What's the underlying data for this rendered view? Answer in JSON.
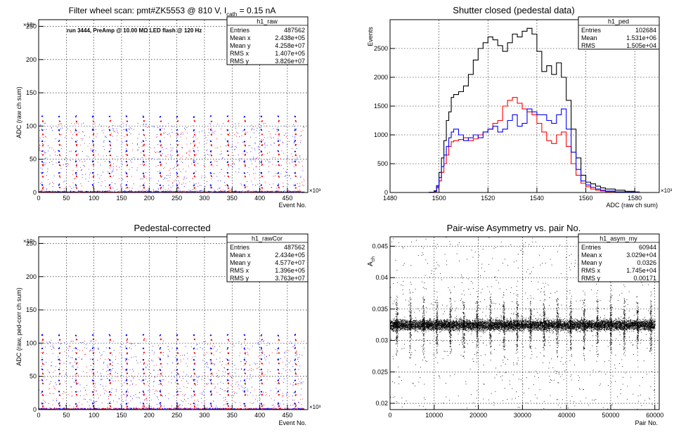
{
  "chart_data": [
    {
      "id": "raw",
      "type": "scatter",
      "title": "Filter wheel scan: pmt#ZK5553 @   810 V, I",
      "title_sub": "cath",
      "title_tail": " = 0.15 nA",
      "annotation": "run 3444, PreAmp @ 10.00 MΩ LED flash @  120 Hz",
      "xlabel": "Event No.",
      "ylabel": "ADC (raw ch sum)",
      "x_exponent": "×10³",
      "y_exponent": "×10⁶",
      "xlim": [
        0,
        487
      ],
      "ylim": [
        0,
        260
      ],
      "xticks": [
        0,
        50,
        100,
        150,
        200,
        250,
        300,
        350,
        400,
        450
      ],
      "yticks": [
        0,
        50,
        100,
        150,
        200,
        250
      ],
      "grid": true,
      "period": 30.5,
      "levels": [
        {
          "y": 115,
          "color": "#0000ff"
        },
        {
          "y": 108,
          "color": "#ff0000"
        },
        {
          "y": 95,
          "color": "#0000ff"
        },
        {
          "y": 88,
          "color": "#ff0000"
        },
        {
          "y": 78,
          "color": "#0000ff"
        },
        {
          "y": 72,
          "color": "#ff0000"
        },
        {
          "y": 63,
          "color": "#0000ff"
        },
        {
          "y": 57,
          "color": "#ff0000"
        },
        {
          "y": 47,
          "color": "#0000ff"
        },
        {
          "y": 42,
          "color": "#ff0000"
        },
        {
          "y": 30,
          "color": "#0000ff"
        },
        {
          "y": 25,
          "color": "#ff0000"
        },
        {
          "y": 12,
          "color": "#0000ff"
        },
        {
          "y": 8,
          "color": "#ff0000"
        }
      ],
      "stats": {
        "name": "h1_raw",
        "rows": [
          [
            "Entries",
            "487562"
          ],
          [
            "Mean x",
            "2.438e+05"
          ],
          [
            "Mean y",
            "4.258e+07"
          ],
          [
            "RMS x",
            "1.407e+05"
          ],
          [
            "RMS y",
            "3.826e+07"
          ]
        ]
      }
    },
    {
      "id": "ped",
      "type": "line",
      "title": "Shutter closed (pedestal data)",
      "xlabel": "ADC (raw ch sum)",
      "ylabel": "Events",
      "x_exponent": "×10³",
      "xlim": [
        1480,
        1590
      ],
      "ylim": [
        0,
        3000
      ],
      "xticks": [
        1480,
        1500,
        1520,
        1540,
        1560,
        1580
      ],
      "yticks": [
        0,
        500,
        1000,
        1500,
        2000,
        2500
      ],
      "grid": true,
      "series": [
        {
          "color": "#000000",
          "x": [
            1496,
            1498,
            1499,
            1500,
            1501,
            1502,
            1503,
            1504,
            1505,
            1506,
            1508,
            1510,
            1512,
            1514,
            1516,
            1518,
            1520,
            1522,
            1524,
            1526,
            1528,
            1530,
            1532,
            1534,
            1536,
            1538,
            1540,
            1542,
            1544,
            1546,
            1548,
            1550,
            1552,
            1554,
            1556,
            1558,
            1560,
            1562,
            1564,
            1566,
            1568,
            1572,
            1576,
            1580
          ],
          "values": [
            5,
            30,
            120,
            350,
            600,
            900,
            1250,
            1400,
            1650,
            1700,
            1750,
            1850,
            2050,
            2300,
            2500,
            2600,
            2700,
            2650,
            2550,
            2450,
            2600,
            2750,
            2700,
            2800,
            2850,
            2750,
            2450,
            2100,
            2200,
            2050,
            2250,
            2000,
            1600,
            1100,
            600,
            300,
            180,
            150,
            110,
            80,
            60,
            40,
            20,
            10
          ]
        },
        {
          "color": "#ff0000",
          "x": [
            1496,
            1498,
            1499,
            1500,
            1501,
            1502,
            1503,
            1504,
            1505,
            1506,
            1508,
            1510,
            1512,
            1514,
            1516,
            1518,
            1520,
            1522,
            1524,
            1526,
            1528,
            1530,
            1532,
            1534,
            1536,
            1538,
            1540,
            1542,
            1544,
            1546,
            1548,
            1550,
            1552,
            1554,
            1556,
            1558,
            1560,
            1562,
            1564,
            1566,
            1568,
            1572,
            1576,
            1580
          ],
          "values": [
            2,
            15,
            80,
            200,
            350,
            500,
            650,
            800,
            880,
            900,
            920,
            950,
            900,
            930,
            1000,
            1050,
            1100,
            1200,
            1250,
            1500,
            1600,
            1650,
            1550,
            1450,
            1400,
            1350,
            1200,
            1050,
            900,
            850,
            1000,
            1050,
            800,
            500,
            300,
            160,
            100,
            60,
            40,
            25,
            15,
            8,
            4,
            2
          ]
        },
        {
          "color": "#0000ff",
          "x": [
            1496,
            1498,
            1499,
            1500,
            1501,
            1502,
            1503,
            1504,
            1505,
            1506,
            1508,
            1510,
            1512,
            1514,
            1516,
            1518,
            1520,
            1522,
            1524,
            1526,
            1528,
            1530,
            1532,
            1534,
            1536,
            1538,
            1540,
            1542,
            1544,
            1546,
            1548,
            1550,
            1552,
            1554,
            1556,
            1558,
            1560,
            1562,
            1564,
            1566,
            1568,
            1572,
            1576,
            1580
          ],
          "values": [
            3,
            20,
            100,
            260,
            450,
            650,
            800,
            950,
            1050,
            1100,
            1000,
            900,
            950,
            1000,
            950,
            1050,
            1100,
            1150,
            1050,
            1100,
            1250,
            1350,
            1150,
            1200,
            1450,
            1400,
            1350,
            1350,
            1250,
            1200,
            1350,
            1450,
            1100,
            700,
            400,
            200,
            130,
            90,
            60,
            40,
            25,
            12,
            6,
            3
          ]
        }
      ],
      "stats": {
        "name": "h1_ped",
        "rows": [
          [
            "Entries",
            "102684"
          ],
          [
            "Mean",
            "1.531e+06"
          ],
          [
            "RMS",
            "1.505e+04"
          ]
        ]
      }
    },
    {
      "id": "rawcor",
      "type": "scatter",
      "title": "Pedestal-corrected",
      "xlabel": "Event No.",
      "ylabel": "ADC (raw, ped-corr ch sum)",
      "x_exponent": "×10³",
      "y_exponent": "×10⁶",
      "xlim": [
        0,
        487
      ],
      "ylim": [
        0,
        260
      ],
      "xticks": [
        0,
        50,
        100,
        150,
        200,
        250,
        300,
        350,
        400,
        450
      ],
      "yticks": [
        0,
        50,
        100,
        150,
        200,
        250
      ],
      "grid": true,
      "period": 30.5,
      "levels": [
        {
          "y": 113,
          "color": "#0000ff"
        },
        {
          "y": 106,
          "color": "#ff0000"
        },
        {
          "y": 93,
          "color": "#0000ff"
        },
        {
          "y": 86,
          "color": "#ff0000"
        },
        {
          "y": 76,
          "color": "#0000ff"
        },
        {
          "y": 70,
          "color": "#ff0000"
        },
        {
          "y": 61,
          "color": "#0000ff"
        },
        {
          "y": 55,
          "color": "#ff0000"
        },
        {
          "y": 45,
          "color": "#0000ff"
        },
        {
          "y": 40,
          "color": "#ff0000"
        },
        {
          "y": 28,
          "color": "#0000ff"
        },
        {
          "y": 23,
          "color": "#ff0000"
        },
        {
          "y": 10,
          "color": "#0000ff"
        },
        {
          "y": 6,
          "color": "#ff0000"
        }
      ],
      "stats": {
        "name": "h1_rawCor",
        "rows": [
          [
            "Entries",
            "487562"
          ],
          [
            "Mean x",
            "2.434e+05"
          ],
          [
            "Mean y",
            "4.577e+07"
          ],
          [
            "RMS x",
            "1.396e+05"
          ],
          [
            "RMS y",
            "3.763e+07"
          ]
        ]
      }
    },
    {
      "id": "asym",
      "type": "scatter",
      "title": "Pair-wise Asymmetry vs. pair No.",
      "xlabel": "Pair No.",
      "ylabel": "A",
      "ylabel_sub": "ch",
      "xlim": [
        0,
        61000
      ],
      "ylim": [
        0.019,
        0.0465
      ],
      "xticks": [
        0,
        10000,
        20000,
        30000,
        40000,
        50000,
        60000
      ],
      "yticks": [
        0.02,
        0.025,
        0.03,
        0.035,
        0.04,
        0.045
      ],
      "ytick_labels": [
        "0.02",
        "0.025",
        "0.03",
        "0.035",
        "0.04",
        "0.045"
      ],
      "grid": true,
      "band_center": 0.0325,
      "band_halfwidth": 0.0012,
      "spike_period": 3030,
      "stats": {
        "name": "h1_asym_my",
        "rows": [
          [
            "Entries",
            "60944"
          ],
          [
            "Mean x",
            "3.029e+04"
          ],
          [
            "Mean y",
            "0.0326"
          ],
          [
            "RMS x",
            "1.745e+04"
          ],
          [
            "RMS y",
            "0.00171"
          ]
        ]
      }
    }
  ]
}
